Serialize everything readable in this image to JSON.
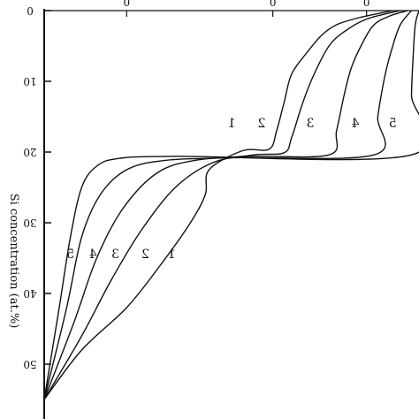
{
  "chart_data": {
    "type": "line",
    "title": "",
    "xlabel": "",
    "ylabel": "Si concentration (at.%)",
    "ylim": [
      0,
      56
    ],
    "y_inverted": true,
    "y_ticks": [
      0,
      10,
      20,
      30,
      40,
      50
    ],
    "y_tick_labels": [
      "0",
      "10",
      "20",
      "30",
      "40",
      "50"
    ],
    "top_tick_labels": [
      "0",
      "0",
      "0"
    ],
    "image_mirrored": true,
    "grid": false,
    "legend": "none",
    "series": [
      {
        "label": "1",
        "points": [
          [
            0.0,
            55.0
          ],
          [
            0.1,
            48
          ],
          [
            0.22,
            42
          ],
          [
            0.31,
            36
          ],
          [
            0.39,
            30
          ],
          [
            0.43,
            26
          ],
          [
            0.44,
            22.5
          ],
          [
            0.53,
            19.8
          ],
          [
            0.6,
            19.6
          ],
          [
            0.62,
            17
          ],
          [
            0.64,
            13
          ],
          [
            0.66,
            9
          ],
          [
            0.7,
            6
          ],
          [
            0.74,
            3.5
          ],
          [
            0.78,
            2
          ],
          [
            0.84,
            1
          ],
          [
            0.93,
            0
          ]
        ]
      },
      {
        "label": "2",
        "points": [
          [
            0.0,
            55.0
          ],
          [
            0.1,
            46
          ],
          [
            0.18,
            38
          ],
          [
            0.26,
            31
          ],
          [
            0.35,
            25
          ],
          [
            0.45,
            21.5
          ],
          [
            0.56,
            20.4
          ],
          [
            0.64,
            20.1
          ],
          [
            0.66,
            18
          ],
          [
            0.69,
            13
          ],
          [
            0.72,
            9
          ],
          [
            0.76,
            5
          ],
          [
            0.8,
            3
          ],
          [
            0.86,
            1.2
          ],
          [
            0.95,
            0
          ]
        ]
      },
      {
        "label": "3",
        "points": [
          [
            0.0,
            55.0
          ],
          [
            0.08,
            44
          ],
          [
            0.14,
            35
          ],
          [
            0.21,
            28
          ],
          [
            0.3,
            23
          ],
          [
            0.4,
            21.2
          ],
          [
            0.55,
            20.6
          ],
          [
            0.76,
            20.4
          ],
          [
            0.78,
            17
          ],
          [
            0.8,
            12
          ],
          [
            0.82,
            8
          ],
          [
            0.85,
            4.5
          ],
          [
            0.88,
            2
          ],
          [
            0.92,
            0.8
          ],
          [
            0.97,
            0
          ]
        ]
      },
      {
        "label": "4",
        "points": [
          [
            0.0,
            55.0
          ],
          [
            0.06,
            42
          ],
          [
            0.1,
            32
          ],
          [
            0.15,
            26
          ],
          [
            0.22,
            22.5
          ],
          [
            0.32,
            21.2
          ],
          [
            0.5,
            20.8
          ],
          [
            0.88,
            20.4
          ],
          [
            0.89,
            15
          ],
          [
            0.91,
            9
          ],
          [
            0.93,
            5
          ],
          [
            0.95,
            2
          ],
          [
            0.98,
            0
          ]
        ]
      },
      {
        "label": "5",
        "points": [
          [
            0.0,
            55.0
          ],
          [
            0.04,
            42
          ],
          [
            0.07,
            32
          ],
          [
            0.1,
            25
          ],
          [
            0.14,
            22
          ],
          [
            0.2,
            20.9
          ],
          [
            0.35,
            20.6
          ],
          [
            0.98,
            20.4
          ],
          [
            0.98,
            12
          ],
          [
            0.985,
            6
          ],
          [
            0.99,
            2
          ],
          [
            1.0,
            0
          ]
        ]
      }
    ]
  }
}
